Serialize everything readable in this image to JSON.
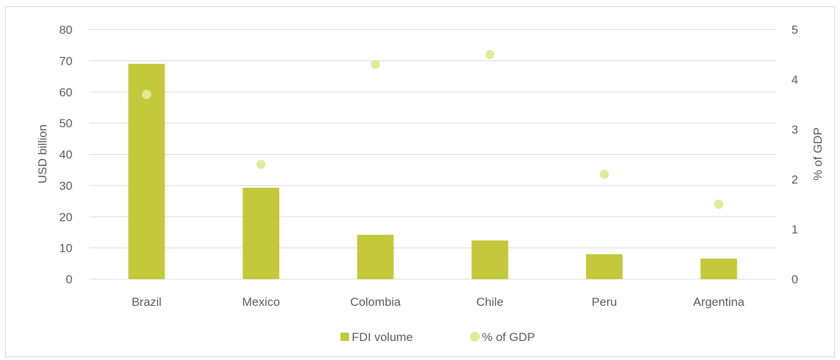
{
  "chart_data": {
    "type": "bar",
    "title": "",
    "categories": [
      "Brazil",
      "Mexico",
      "Colombia",
      "Chile",
      "Peru",
      "Argentina"
    ],
    "series": [
      {
        "name": "FDI volume",
        "kind": "bar",
        "axis": "left",
        "color": "#c3c93a",
        "values": [
          69.0,
          29.3,
          14.2,
          12.4,
          8.0,
          6.6
        ]
      },
      {
        "name": "% of GDP",
        "kind": "scatter",
        "axis": "right",
        "color": "#e4e99a",
        "values": [
          3.7,
          2.3,
          4.3,
          4.5,
          2.1,
          1.5
        ]
      }
    ],
    "ylabel": "USD billion",
    "ylim": [
      0,
      80
    ],
    "yticks": [
      0,
      10,
      20,
      30,
      40,
      50,
      60,
      70,
      80
    ],
    "y2label": "% of GDP",
    "y2lim": [
      0,
      5
    ],
    "y2ticks": [
      0,
      1,
      2,
      3,
      4,
      5
    ],
    "grid": true,
    "legend_position": "bottom",
    "colors": {
      "gridline": "#d9d9d9",
      "text": "#595959",
      "border": "#d9d9d9"
    }
  }
}
